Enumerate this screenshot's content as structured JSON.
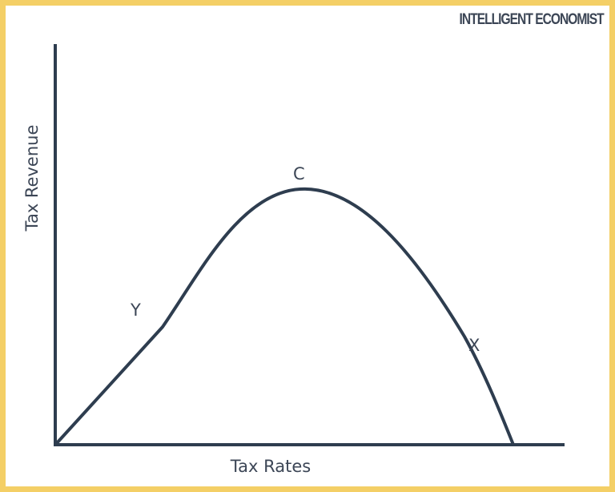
{
  "brand": "INTELLIGENT ECONOMIST",
  "axes": {
    "x_label": "Tax Rates",
    "y_label": "Tax Revenue"
  },
  "points": {
    "peak": "C",
    "left": "Y",
    "right": "X"
  },
  "colors": {
    "border": "#f4cf66",
    "line": "#2e3d4f",
    "background": "#ffffff"
  }
}
